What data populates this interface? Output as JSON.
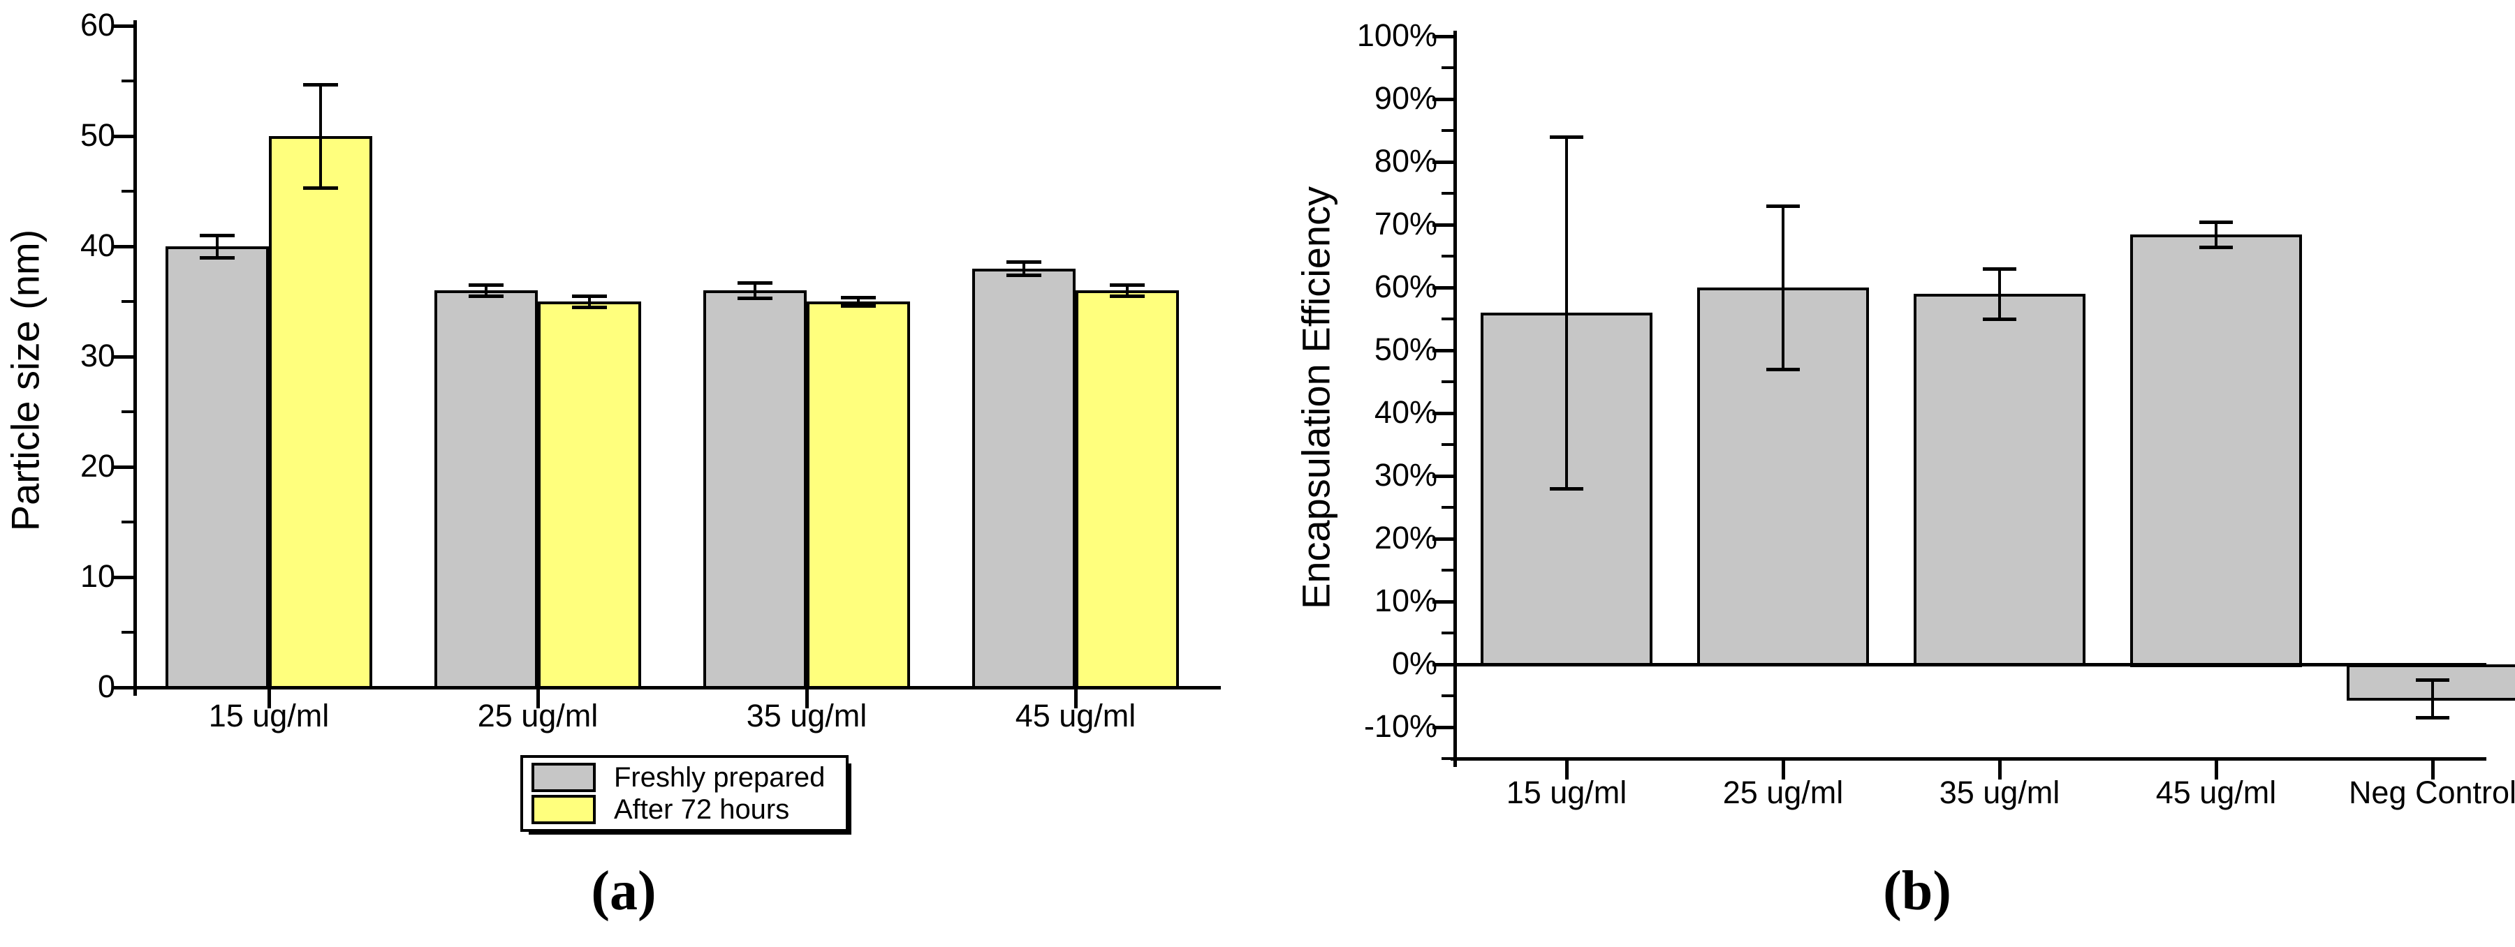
{
  "figure": {
    "background": "#ffffff",
    "bar_gray": "#c6c6c6",
    "bar_yellow": "#ffff7d",
    "axis_color": "#000000"
  },
  "chart_data": [
    {
      "id": "a",
      "type": "bar",
      "caption": "(a)",
      "title": "",
      "xlabel": "",
      "ylabel": "Particle size (nm)",
      "ylim": [
        0,
        60
      ],
      "baseline": 0,
      "grid": false,
      "legend_position": "below",
      "ytick_values": [
        0,
        10,
        20,
        30,
        40,
        50,
        60
      ],
      "ytick_labels": [
        "0",
        "10",
        "20",
        "30",
        "40",
        "50",
        "60"
      ],
      "yminor_values": [
        5,
        15,
        25,
        35,
        45,
        55
      ],
      "categories": [
        "15 ug/ml",
        "25 ug/ml",
        "35 ug/ml",
        "45 ug/ml"
      ],
      "series": [
        {
          "name": "Freshly prepared",
          "color": "#c6c6c6",
          "values": [
            40,
            36,
            36,
            38
          ],
          "errors": [
            1,
            0.5,
            0.7,
            0.6
          ]
        },
        {
          "name": "After 72 hours",
          "color": "#ffff7d",
          "values": [
            50,
            35,
            35,
            36
          ],
          "errors": [
            4.7,
            0.5,
            0.4,
            0.5
          ]
        }
      ]
    },
    {
      "id": "b",
      "type": "bar",
      "caption": "(b)",
      "title": "",
      "xlabel": "",
      "ylabel": "Encapsulation Efficiency",
      "ylim": [
        -15,
        100
      ],
      "baseline": 0,
      "grid": false,
      "legend_position": "none",
      "ytick_values": [
        -10,
        0,
        10,
        20,
        30,
        40,
        50,
        60,
        70,
        80,
        90,
        100
      ],
      "ytick_labels": [
        "-10%",
        "0%",
        "10%",
        "20%",
        "30%",
        "40%",
        "50%",
        "60%",
        "70%",
        "80%",
        "90%",
        "100%"
      ],
      "yminor_values": [
        -15,
        -5,
        5,
        15,
        25,
        35,
        45,
        55,
        65,
        75,
        85,
        95
      ],
      "categories": [
        "15 ug/ml",
        "25 ug/ml",
        "35 ug/ml",
        "45 ug/ml",
        "Neg Control"
      ],
      "series": [
        {
          "name": "Encapsulation Efficiency",
          "color": "#c6c6c6",
          "values": [
            56,
            60,
            59,
            68.5,
            -5.4
          ],
          "errors": [
            28,
            13,
            4,
            2,
            3
          ]
        }
      ]
    }
  ]
}
